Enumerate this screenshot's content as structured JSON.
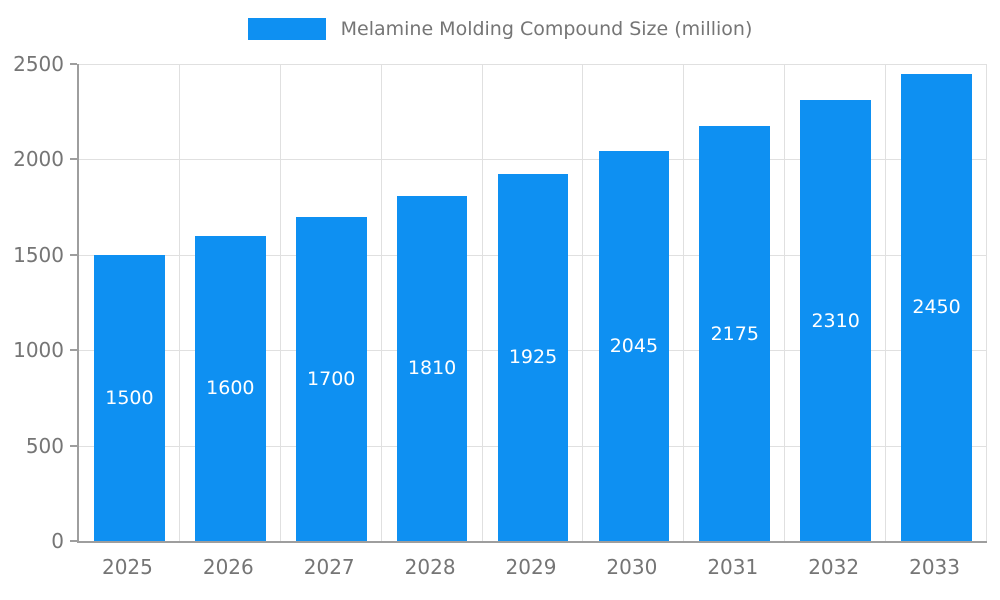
{
  "chart_data": {
    "type": "bar",
    "title": "Melamine Molding Compound Size (million)",
    "series_name": "Melamine Molding Compound Size (million)",
    "categories": [
      "2025",
      "2026",
      "2027",
      "2028",
      "2029",
      "2030",
      "2031",
      "2032",
      "2033"
    ],
    "values": [
      1500,
      1600,
      1700,
      1810,
      1925,
      2045,
      2175,
      2310,
      2450
    ],
    "data_labels": [
      "1500",
      "1600",
      "1700",
      "1810",
      "1925",
      "2045",
      "2175",
      "2310",
      "2450"
    ],
    "xlabel": "",
    "ylabel": "",
    "ylim": [
      0,
      2500
    ],
    "yticks": [
      0,
      500,
      1000,
      1500,
      2000,
      2500
    ],
    "grid": true,
    "legend_position": "top",
    "colors": {
      "bar": "#0e90f2",
      "bar_value_text": "#ffffff",
      "axis_line": "#9e9e9e",
      "gridline": "#e0e0e0",
      "tick_text": "#757575",
      "legend_text": "#757575"
    }
  }
}
